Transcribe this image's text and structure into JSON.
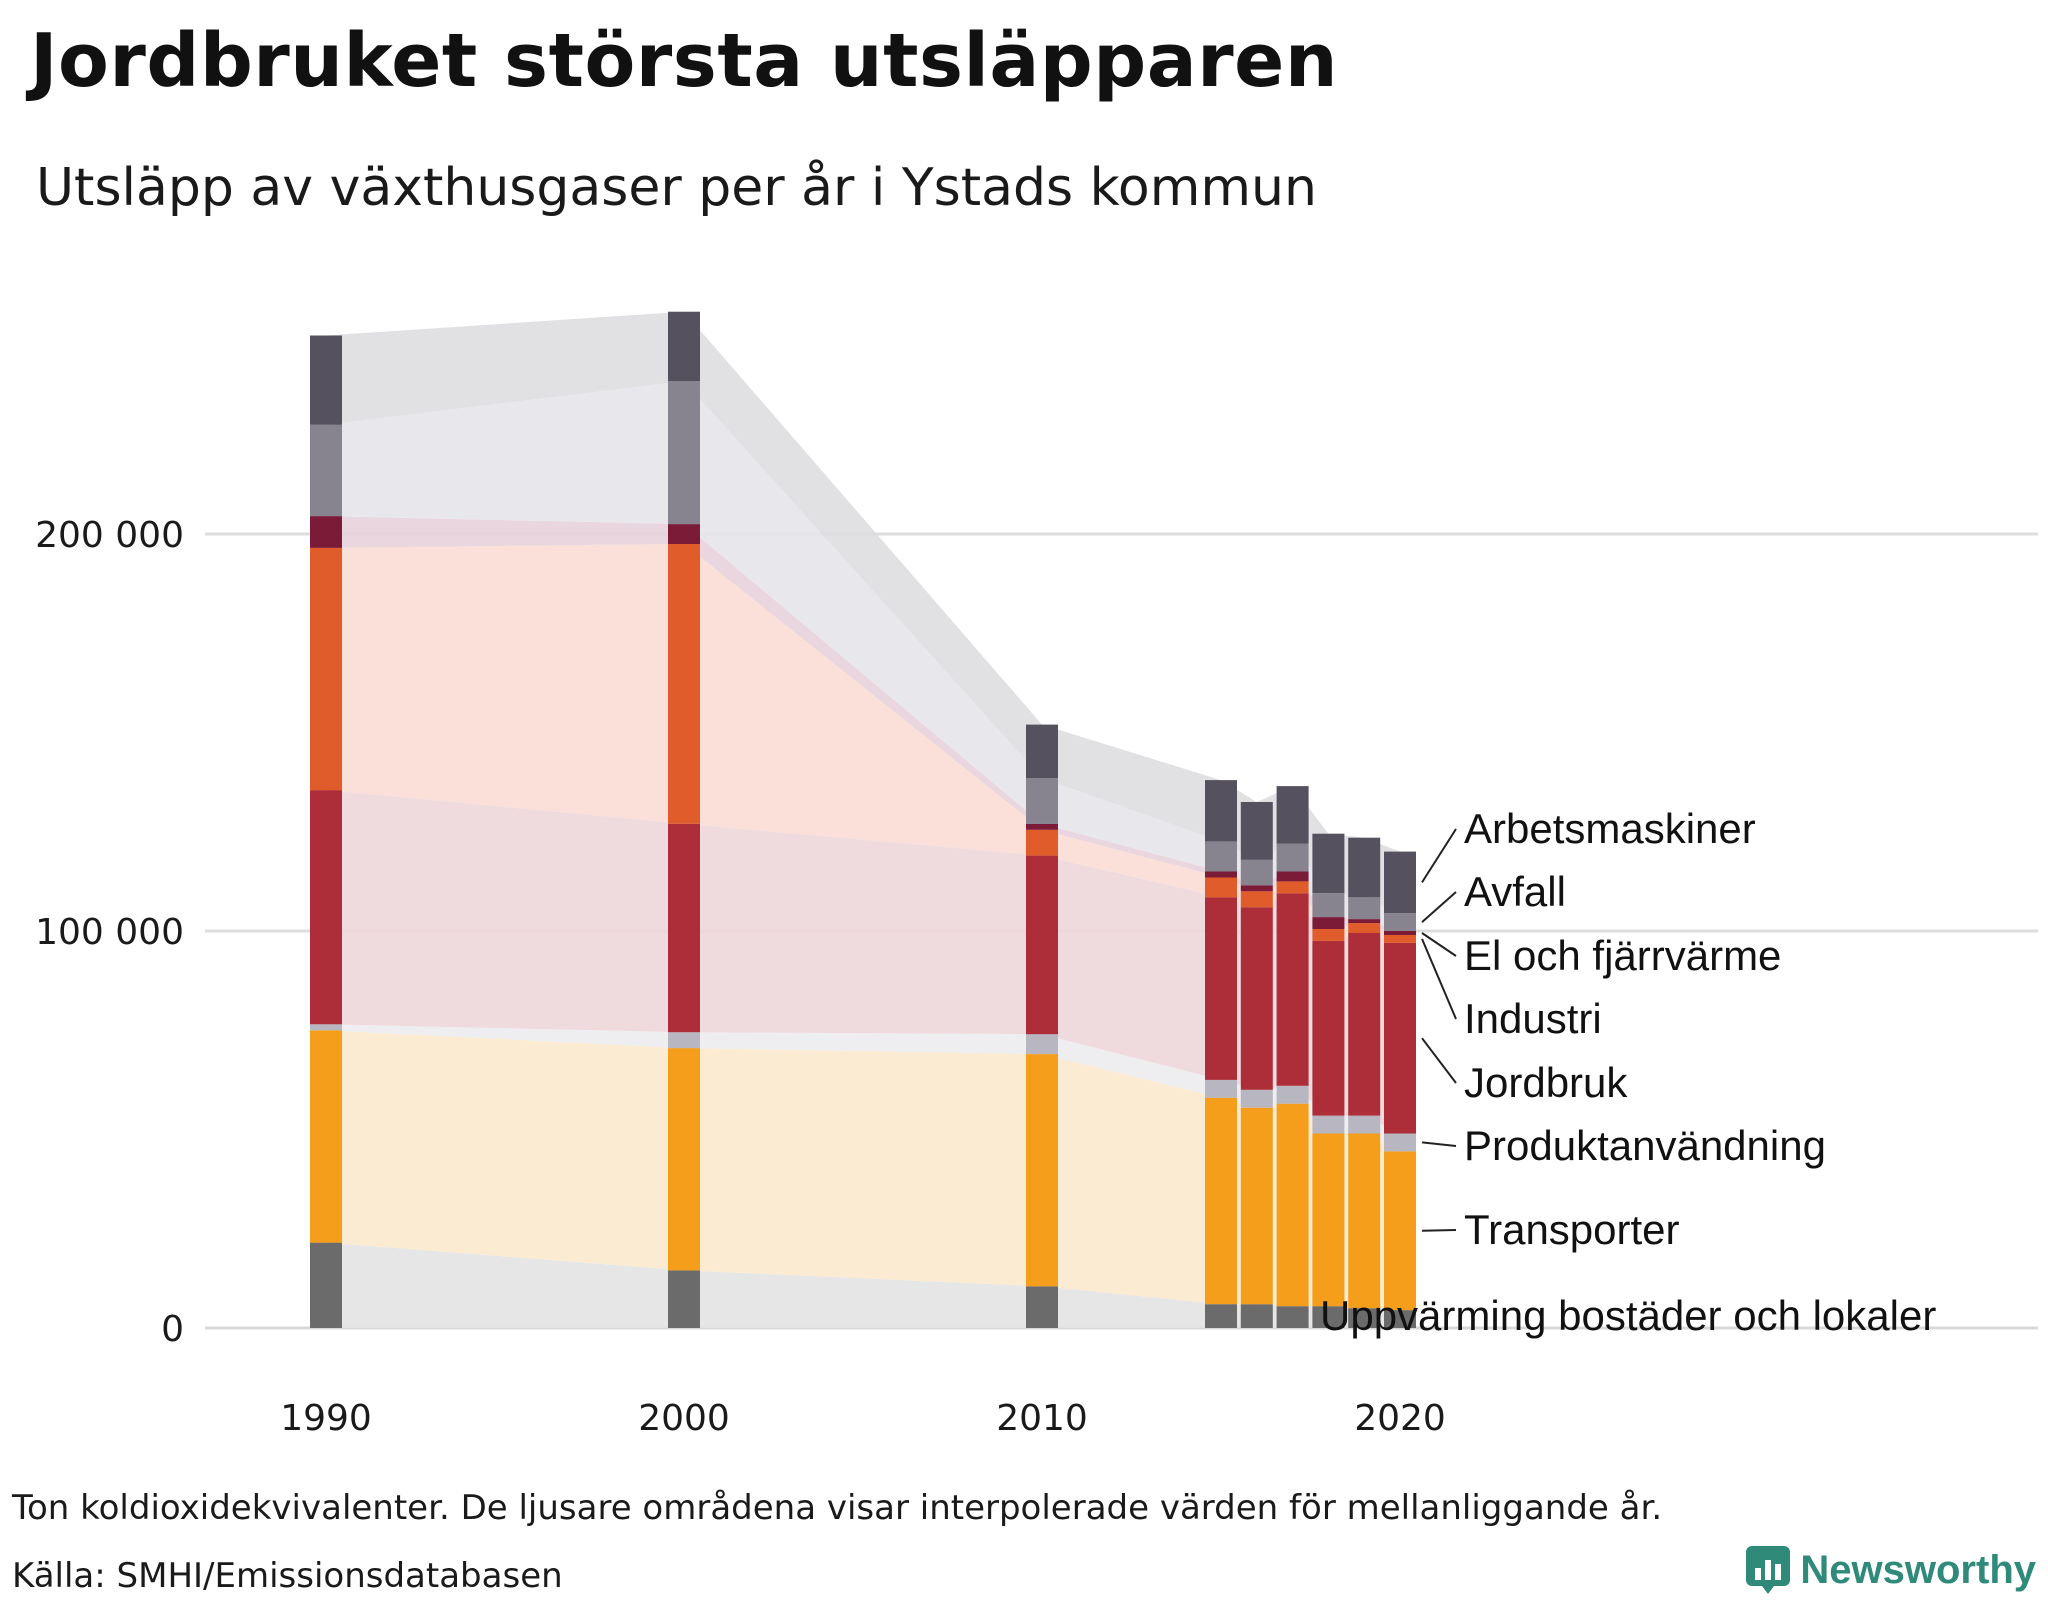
{
  "title": "Jordbruket största utsläpparen",
  "subtitle": "Utsläpp av växthusgaser per år i Ystads kommun",
  "footnote": "Ton koldioxidekvivalenter. De ljusare områdena visar interpolerade värden för mellanliggande år.",
  "source": "Källa: SMHI/Emissionsdatabasen",
  "brand": {
    "name": "Newsworthy",
    "color": "#2f8a7a"
  },
  "chart_data": {
    "type": "bar",
    "stacked": true,
    "unit": "Ton koldioxidekvivalenter",
    "x": [
      1990,
      2000,
      2010,
      2015,
      2016,
      2017,
      2018,
      2019,
      2020
    ],
    "x_ticks": [
      1990,
      2000,
      2010,
      2020
    ],
    "y_ticks": [
      0,
      100000,
      200000
    ],
    "y_tick_labels": [
      "0",
      "100 000",
      "200 000"
    ],
    "ylim": [
      0,
      262000
    ],
    "grid": true,
    "series": [
      {
        "name": "Uppvärming bostäder och lokaler",
        "color": "#6b6b6b",
        "light": "#e3e3e3",
        "values": [
          21500,
          14500,
          10500,
          6000,
          6000,
          5500,
          5500,
          5000,
          4500
        ]
      },
      {
        "name": "Transporter",
        "color": "#f59e1b",
        "light": "#fbe9cd",
        "values": [
          53500,
          56000,
          58500,
          52000,
          49500,
          51000,
          43500,
          44000,
          40000
        ]
      },
      {
        "name": "Produktanvändning",
        "color": "#b8b6c0",
        "light": "#ececf0",
        "values": [
          1500,
          4000,
          5000,
          4500,
          4500,
          4500,
          4500,
          4500,
          4500
        ]
      },
      {
        "name": "Jordbruk",
        "color": "#ad2e39",
        "light": "#edd6da",
        "values": [
          59000,
          52500,
          45000,
          46000,
          46000,
          48500,
          44000,
          46000,
          48000
        ]
      },
      {
        "name": "Industri",
        "color": "#e05d2b",
        "light": "#f9ddd4",
        "values": [
          61000,
          70500,
          6500,
          5000,
          4000,
          3000,
          3000,
          2500,
          2000
        ]
      },
      {
        "name": "El och fjärrvärme",
        "color": "#7b1b38",
        "light": "#e8d2da",
        "values": [
          8000,
          5000,
          1500,
          1500,
          1500,
          2500,
          3000,
          1000,
          1000
        ]
      },
      {
        "name": "Avfall",
        "color": "#87838f",
        "light": "#e6e5ea",
        "values": [
          23000,
          36000,
          11500,
          7500,
          6500,
          7000,
          6000,
          5500,
          4500
        ]
      },
      {
        "name": "Arbetsmaskiner",
        "color": "#55515f",
        "light": "#dedde0",
        "values": [
          22500,
          17500,
          13500,
          15500,
          14500,
          14500,
          15000,
          15000,
          15500
        ]
      }
    ],
    "legend": [
      "Arbetsmaskiner",
      "Avfall",
      "El och fjärrvärme",
      "Industri",
      "Jordbruk",
      "Produktanvändning",
      "Transporter",
      "Uppvärming bostäder och lokaler"
    ]
  }
}
